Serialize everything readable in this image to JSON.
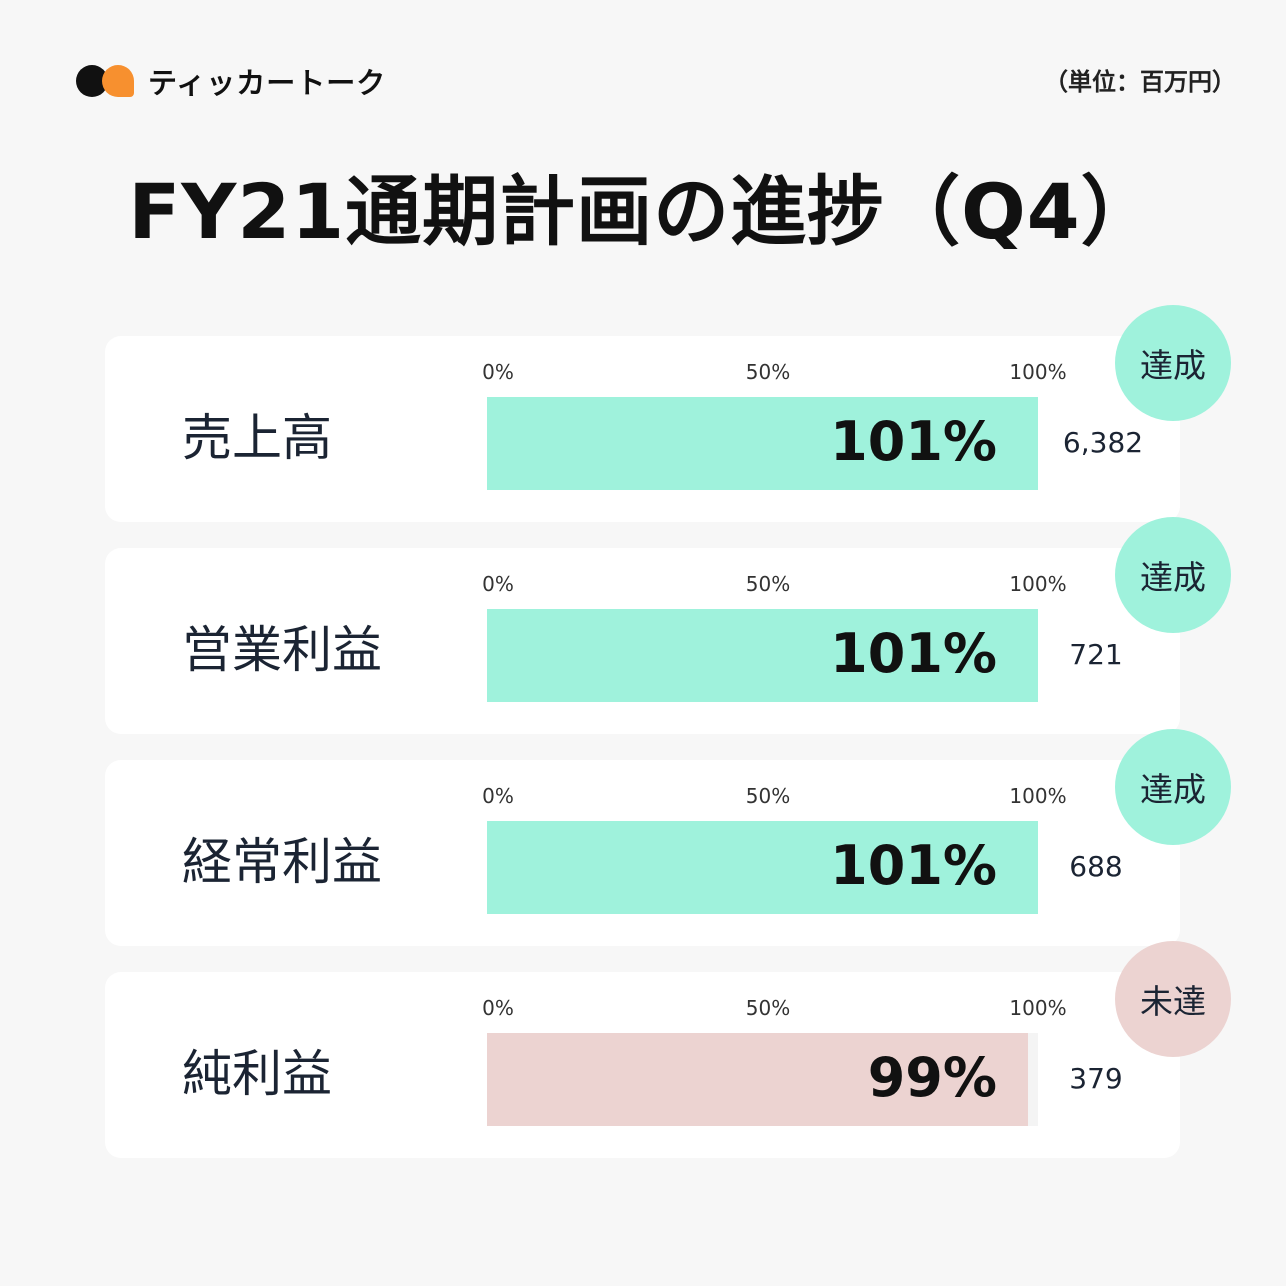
{
  "logo": {
    "text": "ティッカートーク",
    "colors": {
      "dark": "#111111",
      "orange": "#f7902f"
    }
  },
  "unit": "（単位：百万円）",
  "title": "FY21通期計画の進捗（Q4）",
  "chart_data": {
    "type": "bar",
    "orientation": "horizontal",
    "title": "FY21通期計画の進捗（Q4）",
    "tick_labels": [
      "0%",
      "50%",
      "100%"
    ],
    "xlim": [
      0,
      100
    ],
    "categories": [
      "売上高",
      "営業利益",
      "経常利益",
      "純利益"
    ],
    "values": [
      101,
      101,
      101,
      99
    ],
    "value_labels": [
      "101%",
      "101%",
      "101%",
      "99%"
    ],
    "amounts": [
      "6,382",
      "721",
      "688",
      "379"
    ],
    "status": [
      "達成",
      "達成",
      "達成",
      "未達"
    ],
    "colors": {
      "達成": "#9ff2dc",
      "未達": "#ecd3d1"
    }
  }
}
